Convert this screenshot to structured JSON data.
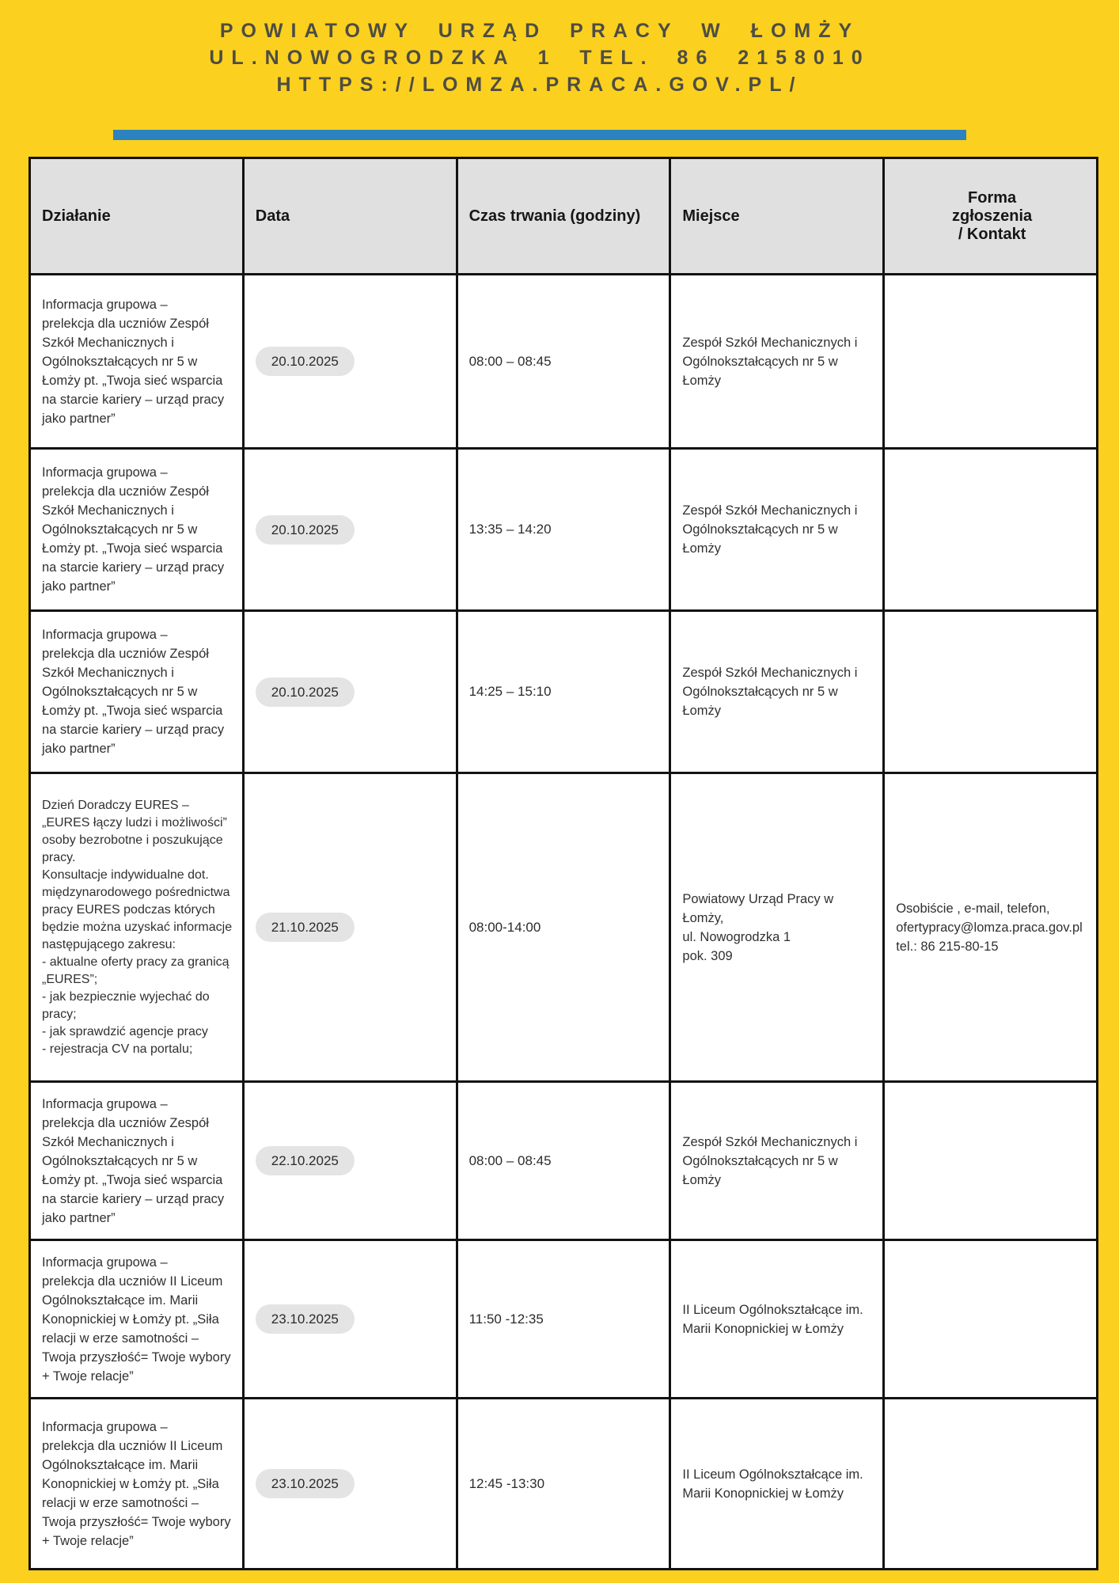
{
  "page": {
    "background_color": "#FCD01F",
    "accent_bar_color": "#2C82BE"
  },
  "header": {
    "line1": "POWIATOWY URZĄD PRACY W ŁOMŻY",
    "line2": "UL.NOWOGRODZKA 1 TEL. 86 2158010",
    "line3": "HTTPS://LOMZA.PRACA.GOV.PL/"
  },
  "table": {
    "columns": [
      "Działanie",
      "Data",
      "Czas trwania (godziny)",
      "Miejsce",
      "Forma\nzgłoszenia\n/ Kontakt"
    ],
    "rows": [
      {
        "dzialanie": "Informacja grupowa –\nprelekcja dla uczniów Zespół Szkół Mechanicznych i Ogólnokształcących nr 5 w Łomży pt. „Twoja sieć wsparcia na starcie kariery – urząd pracy jako partner”",
        "data": "20.10.2025",
        "czas": "08:00 – 08:45",
        "miejsce": "Zespół Szkół Mechanicznych i Ogólnokształcących nr 5 w Łomży",
        "kontakt": ""
      },
      {
        "dzialanie": "Informacja grupowa –\nprelekcja dla uczniów Zespół Szkół Mechanicznych i Ogólnokształcących nr 5 w Łomży pt. „Twoja sieć wsparcia na starcie kariery – urząd pracy jako partner”",
        "data": "20.10.2025",
        "czas": "13:35 – 14:20",
        "miejsce": "Zespół Szkół Mechanicznych i Ogólnokształcących nr 5 w Łomży",
        "kontakt": ""
      },
      {
        "dzialanie": "Informacja grupowa –\nprelekcja dla uczniów Zespół Szkół Mechanicznych i Ogólnokształcących nr 5 w Łomży pt. „Twoja sieć wsparcia na starcie kariery – urząd pracy jako partner”",
        "data": "20.10.2025",
        "czas": "14:25 – 15:10",
        "miejsce": "Zespół Szkół Mechanicznych i Ogólnokształcących nr 5 w Łomży",
        "kontakt": ""
      },
      {
        "dzialanie": "Dzień Doradczy EURES –\n„EURES łączy ludzi i możliwości” osoby bezrobotne i poszukujące pracy.\nKonsultacje indywidualne dot. międzynarodowego pośrednictwa pracy EURES podczas których będzie można uzyskać informacje następującego zakresu:\n- aktualne oferty pracy za granicą „EURES”;\n- jak bezpiecznie wyjechać do pracy;\n- jak sprawdzić agencje pracy\n- rejestracja CV na portalu;",
        "data": "21.10.2025",
        "czas": "08:00-14:00",
        "miejsce": "Powiatowy Urząd Pracy w Łomży,\nul. Nowogrodzka 1\npok. 309",
        "kontakt": "Osobiście , e-mail, telefon,\nofertypracy@lomza.praca.gov.pl\ntel.: 86 215-80-15"
      },
      {
        "dzialanie": "Informacja grupowa –\nprelekcja dla uczniów Zespół Szkół Mechanicznych i Ogólnokształcących nr 5 w Łomży pt. „Twoja sieć wsparcia na starcie kariery – urząd pracy jako partner”",
        "data": "22.10.2025",
        "czas": "08:00 – 08:45",
        "miejsce": "Zespół Szkół Mechanicznych i Ogólnokształcących nr 5 w Łomży",
        "kontakt": ""
      },
      {
        "dzialanie": "Informacja grupowa –\nprelekcja dla uczniów II Liceum Ogólnokształcące im. Marii Konopnickiej w Łomży pt. „Siła relacji w erze samotności – Twoja przyszłość= Twoje wybory + Twoje relacje”",
        "data": "23.10.2025",
        "czas": "11:50 -12:35",
        "miejsce": "II Liceum Ogólnokształcące im. Marii Konopnickiej w Łomży",
        "kontakt": ""
      },
      {
        "dzialanie": "Informacja grupowa –\nprelekcja dla uczniów II Liceum Ogólnokształcące im. Marii Konopnickiej w Łomży pt. „Siła relacji w erze samotności – Twoja przyszłość= Twoje wybory + Twoje relacje”",
        "data": "23.10.2025",
        "czas": "12:45 -13:30",
        "miejsce": "II Liceum Ogólnokształcące im. Marii Konopnickiej w Łomży",
        "kontakt": ""
      }
    ]
  }
}
